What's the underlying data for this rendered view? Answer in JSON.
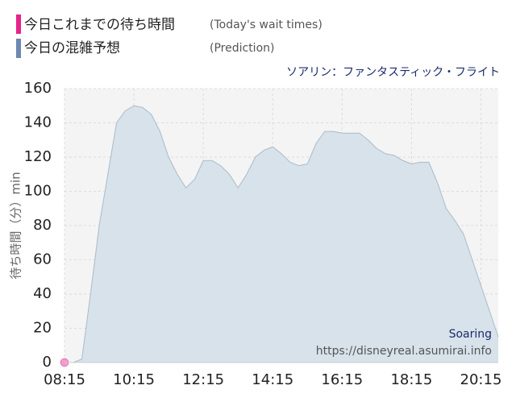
{
  "chart_data": {
    "type": "area",
    "legend": [
      {
        "label": "今日これまでの待ち時間",
        "note": "(Today's wait times)",
        "color": "#e8238c"
      },
      {
        "label": "今日の混雑予想",
        "note": "(Prediction)",
        "color": "#6f88b0"
      }
    ],
    "subtitle": "ソアリン：ファンタスティック・フライト",
    "y_label": "待ち時間（分）min",
    "watermark": [
      "Soaring",
      "https://disneyreal.asumirai.info"
    ],
    "x": [
      "08:15",
      "08:30",
      "08:45",
      "09:00",
      "09:15",
      "09:30",
      "09:45",
      "10:00",
      "10:15",
      "10:30",
      "10:45",
      "11:00",
      "11:15",
      "11:30",
      "11:45",
      "12:00",
      "12:15",
      "12:30",
      "12:45",
      "13:00",
      "13:15",
      "13:30",
      "13:45",
      "14:00",
      "14:15",
      "14:30",
      "14:45",
      "15:00",
      "15:15",
      "15:30",
      "15:45",
      "16:00",
      "16:15",
      "16:30",
      "16:45",
      "17:00",
      "17:15",
      "17:30",
      "17:45",
      "18:00",
      "18:15",
      "18:30",
      "18:45",
      "19:00",
      "19:15",
      "19:30",
      "19:45",
      "20:00",
      "20:15",
      "20:30",
      "20:45"
    ],
    "series": [
      {
        "name": "今日これまでの待ち時間",
        "color": "#f09ccb",
        "values": [
          0,
          null,
          null,
          null,
          null,
          null,
          null,
          null,
          null,
          null,
          null,
          null,
          null,
          null,
          null,
          null,
          null,
          null,
          null,
          null,
          null,
          null,
          null,
          null,
          null,
          null,
          null,
          null,
          null,
          null,
          null,
          null,
          null,
          null,
          null,
          null,
          null,
          null,
          null,
          null,
          null,
          null,
          null,
          null,
          null,
          null,
          null,
          null,
          null,
          null,
          null
        ]
      },
      {
        "name": "今日の混雑予想",
        "color": "#a9bccb",
        "values": [
          0,
          0,
          2,
          40,
          80,
          110,
          140,
          147,
          150,
          149,
          145,
          135,
          120,
          110,
          102,
          107,
          118,
          118,
          115,
          110,
          102,
          110,
          120,
          124,
          126,
          122,
          117,
          115,
          116,
          128,
          135,
          135,
          134,
          134,
          134,
          130,
          125,
          122,
          121,
          118,
          116,
          117,
          117,
          105,
          90,
          83,
          75,
          60,
          45,
          30,
          15
        ]
      }
    ],
    "xlim": [
      "08:15",
      "20:45"
    ],
    "xticks": [
      "08:15",
      "10:15",
      "12:15",
      "14:15",
      "16:15",
      "18:15",
      "20:15"
    ],
    "ylim": [
      0,
      160
    ],
    "yticks": [
      0,
      20,
      40,
      60,
      80,
      100,
      120,
      140,
      160
    ],
    "grid": true
  }
}
